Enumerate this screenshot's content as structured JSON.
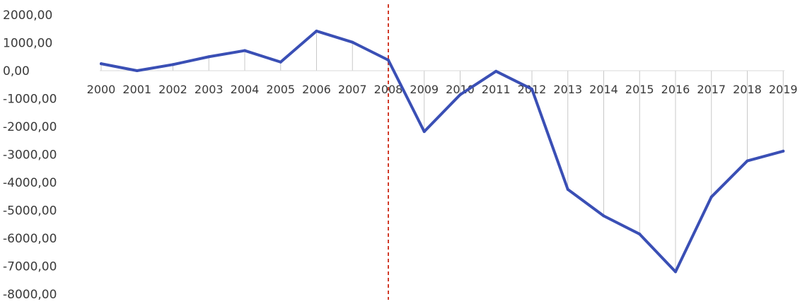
{
  "chart_data": {
    "type": "line",
    "title": "",
    "xlabel": "",
    "ylabel": "",
    "categories": [
      "2000",
      "2001",
      "2002",
      "2003",
      "2004",
      "2005",
      "2006",
      "2007",
      "2008",
      "2009",
      "2010",
      "2011",
      "2012",
      "2013",
      "2014",
      "2015",
      "2016",
      "2017",
      "2018",
      "2019"
    ],
    "series": [
      {
        "values": [
          250,
          0,
          220,
          500,
          720,
          310,
          1420,
          1020,
          380,
          -2180,
          -860,
          -20,
          -660,
          -4250,
          -5200,
          -5850,
          -7200,
          -4520,
          -3230,
          -2880
        ],
        "color": "#3a4fb5"
      }
    ],
    "ylim": [
      -8000,
      2000
    ],
    "y_ticks": [
      "2000,00",
      "1000,00",
      "0,00",
      "-1000,00",
      "-2000,00",
      "-3000,00",
      "-4000,00",
      "-5000,00",
      "-6000,00",
      "-7000,00",
      "-8000,00"
    ],
    "y_tick_values": [
      2000,
      1000,
      0,
      -1000,
      -2000,
      -3000,
      -4000,
      -5000,
      -6000,
      -7000,
      -8000
    ],
    "reference_line": {
      "category": "2008",
      "color": "#d23c2a",
      "style": "dashed"
    },
    "drop_lines": true,
    "grid": false,
    "legend": "none"
  }
}
